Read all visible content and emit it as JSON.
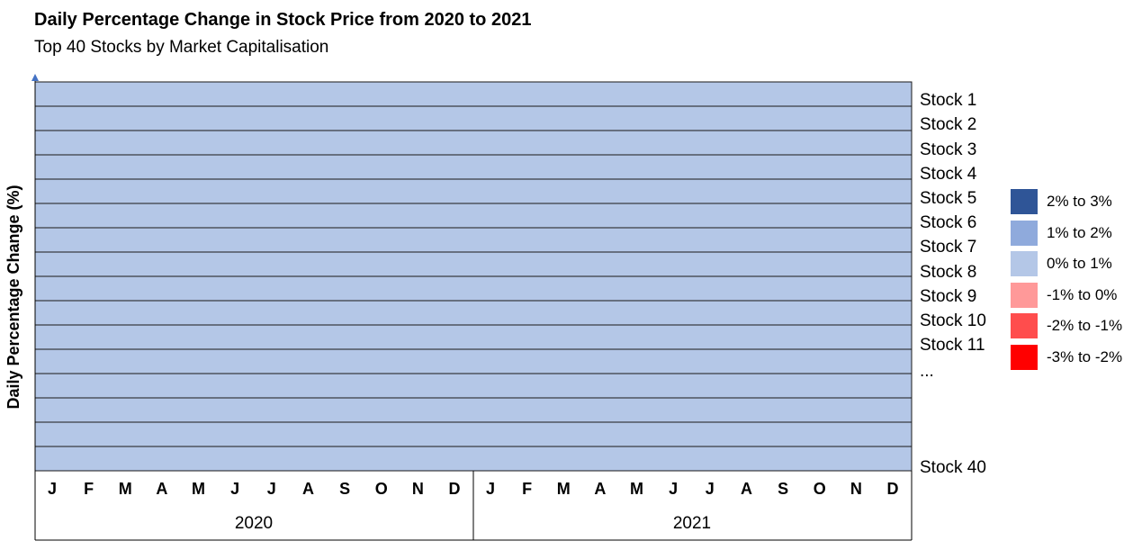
{
  "chart_data": {
    "type": "heatmap",
    "title": "Daily Percentage Change in Stock Price from 2020 to 2021",
    "subtitle": "Top 40 Stocks by Market Capitalisation",
    "ylabel": "Daily Percentage Change (%)",
    "months": [
      "J",
      "F",
      "M",
      "A",
      "M",
      "J",
      "J",
      "A",
      "S",
      "O",
      "N",
      "D",
      "J",
      "F",
      "M",
      "A",
      "M",
      "J",
      "J",
      "A",
      "S",
      "O",
      "N",
      "D"
    ],
    "years": [
      "2020",
      "2021"
    ],
    "row_labels": [
      "Stock 1",
      "Stock 2",
      "Stock 3",
      "Stock 4",
      "Stock 5",
      "Stock 6",
      "Stock 7",
      "Stock 8",
      "Stock 9",
      "Stock 10",
      "Stock 11",
      "...",
      "",
      "",
      "",
      "Stock 40"
    ],
    "row_bin": "0% to 1%",
    "legend": [
      {
        "label": "2% to 3%",
        "color": "#2F5597"
      },
      {
        "label": "1% to 2%",
        "color": "#8FAADC"
      },
      {
        "label": "0% to 1%",
        "color": "#B4C7E7"
      },
      {
        "label": "-1% to 0%",
        "color": "#FF9999"
      },
      {
        "label": "-2% to -1%",
        "color": "#FF4D4D"
      },
      {
        "label": "-3% to -2%",
        "color": "#FF0000"
      }
    ]
  }
}
